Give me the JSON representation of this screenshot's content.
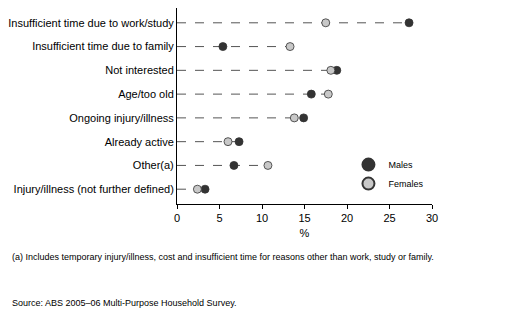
{
  "chart_data": {
    "type": "dot",
    "orientation": "horizontal",
    "x_label": "%",
    "categories": [
      "Insufficient time due to work/study",
      "Insufficient time due to family",
      "Not interested",
      "Age/too old",
      "Ongoing injury/illness",
      "Already active",
      "Other(a)",
      "Injury/illness (not further defined)"
    ],
    "series": [
      {
        "name": "Males",
        "color": "#333333",
        "marker": "circle",
        "values": [
          27.3,
          5.4,
          18.8,
          15.8,
          14.9,
          7.3,
          6.7,
          3.3
        ]
      },
      {
        "name": "Females",
        "color": "#c8c8c8",
        "marker": "circle",
        "values": [
          17.5,
          13.3,
          18.1,
          17.8,
          13.8,
          6.0,
          10.7,
          2.4
        ]
      }
    ],
    "line_style": "dash",
    "xlim": [
      0,
      30
    ],
    "xticks": [
      0,
      5,
      10,
      15,
      20,
      25,
      30
    ],
    "grid": false,
    "legend": "bottom right",
    "annotations": [
      "(a) Includes temporary injury/illness, cost and insufficient time for reasons other than work, study or family.",
      "Source: ABS 2005–06 Multi-Purpose Household Survey."
    ]
  }
}
